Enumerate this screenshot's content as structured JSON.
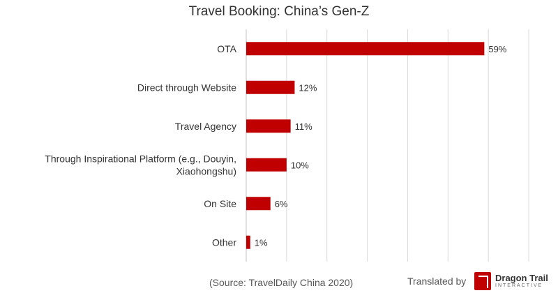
{
  "chart_data": {
    "type": "bar",
    "orientation": "horizontal",
    "title": "Travel Booking: China’s Gen-Z",
    "categories": [
      "OTA",
      "Direct through Website",
      "Travel Agency",
      "Through Inspirational Platform (e.g., Douyin, Xiaohongshu)",
      "On Site",
      "Other"
    ],
    "category_lines": [
      [
        "OTA"
      ],
      [
        "Direct through Website"
      ],
      [
        "Travel Agency"
      ],
      [
        "Through Inspirational Platform (e.g., Douyin,",
        "Xiaohongshu)"
      ],
      [
        "On Site"
      ],
      [
        "Other"
      ]
    ],
    "values": [
      59,
      12,
      11,
      10,
      6,
      1
    ],
    "value_labels": [
      "59%",
      "12%",
      "11%",
      "10%",
      "6%",
      "1%"
    ],
    "xlim": [
      0,
      70
    ],
    "grid": true,
    "bar_color": "#c00000"
  },
  "footer": {
    "source": "(Source: TravelDaily China 2020)",
    "translated_by": "Translated by",
    "logo_name": "Dragon Trail",
    "logo_sub": "INTERACTIVE"
  }
}
